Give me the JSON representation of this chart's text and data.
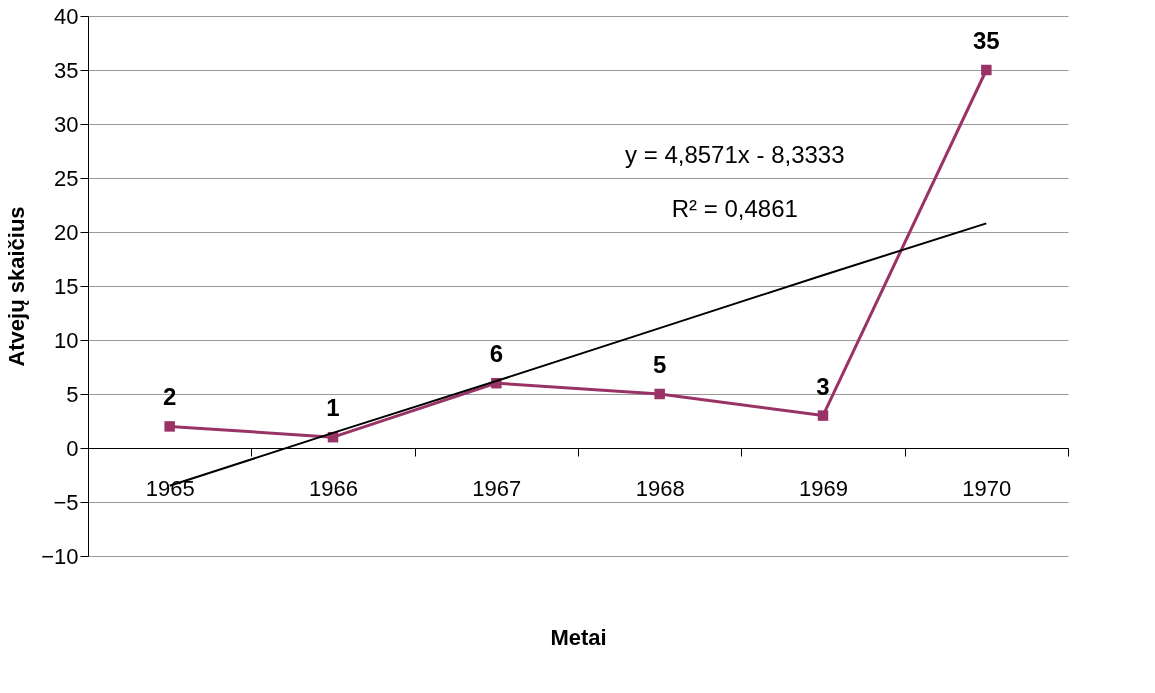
{
  "chart_data": {
    "type": "line",
    "xlabel": "Metai",
    "ylabel": "Atvejų skaičius",
    "categories": [
      "1965",
      "1966",
      "1967",
      "1968",
      "1969",
      "1970"
    ],
    "series": [
      {
        "color": "#993366",
        "values": [
          2,
          1,
          6,
          5,
          3,
          35
        ],
        "marker": "square",
        "value_labels": [
          "2",
          "1",
          "6",
          "5",
          "3",
          "35"
        ]
      },
      {
        "color": "#000000",
        "values": [
          -3.5,
          1.4,
          6.2,
          11.1,
          16.0,
          20.8
        ],
        "marker": "none"
      }
    ],
    "ylim": [
      -10,
      40
    ],
    "yticks": [
      -10,
      -5,
      0,
      5,
      10,
      15,
      20,
      25,
      30,
      35,
      40
    ],
    "grid": "y",
    "annotations": [
      "y = 4,8571x - 8,3333",
      "R² = 0,4861"
    ]
  }
}
